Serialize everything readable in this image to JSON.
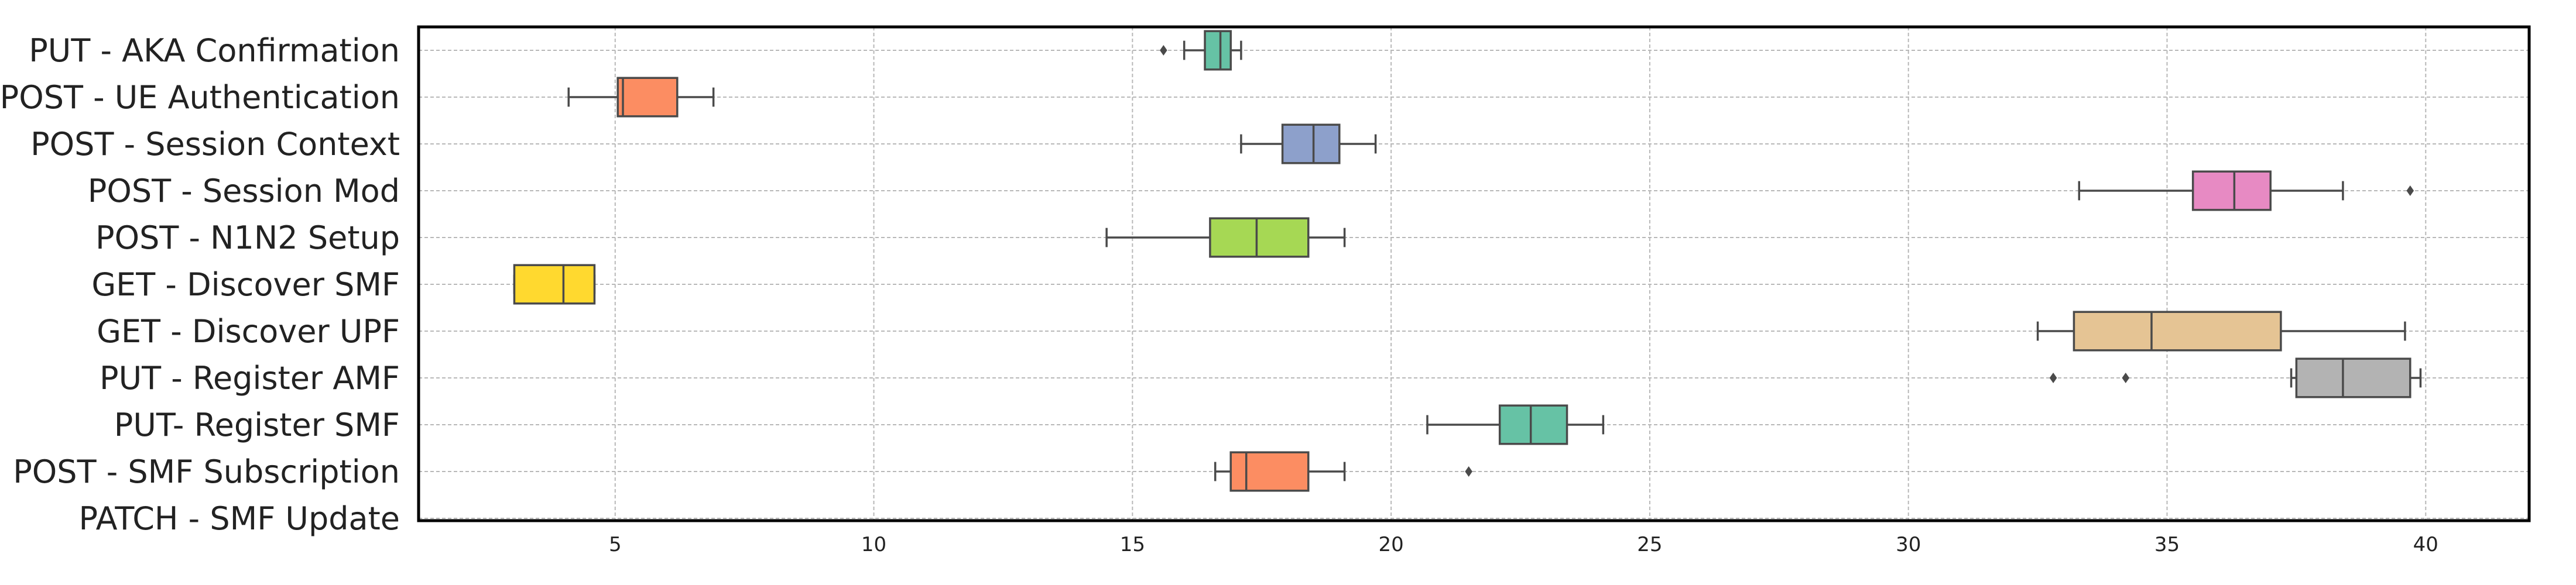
{
  "chart_data": {
    "type": "boxplot",
    "orientation": "horizontal",
    "title": "",
    "xlabel": "",
    "ylabel": "",
    "xlim": [
      1.2,
      42
    ],
    "xticks": [
      5,
      10,
      15,
      20,
      25,
      30,
      35,
      40
    ],
    "xtick_labels": [
      "5",
      "10",
      "15",
      "20",
      "25",
      "30",
      "35",
      "40"
    ],
    "grid": true,
    "categories": [
      "PUT - AKA Confirmation",
      "POST - UE Authentication",
      "POST - Session Context",
      "POST - Session Mod",
      "POST - N1N2 Setup",
      "GET - Discover SMF",
      "GET - Discover UPF",
      "PUT - Register AMF",
      "PUT- Register SMF",
      "POST - SMF Subscription",
      "PATCH - SMF Update"
    ],
    "boxes": [
      {
        "whisker_low": 16.0,
        "q1": 16.4,
        "median": 16.7,
        "q3": 16.9,
        "whisker_high": 17.1,
        "fliers": [
          15.6
        ],
        "color": "#66c2a5"
      },
      {
        "whisker_low": 4.1,
        "q1": 5.05,
        "median": 5.15,
        "q3": 6.2,
        "whisker_high": 6.9,
        "fliers": [],
        "color": "#fc8d62"
      },
      {
        "whisker_low": 17.1,
        "q1": 17.9,
        "median": 18.5,
        "q3": 19.0,
        "whisker_high": 19.7,
        "fliers": [],
        "color": "#8da0cb"
      },
      {
        "whisker_low": 33.3,
        "q1": 35.5,
        "median": 36.3,
        "q3": 37.0,
        "whisker_high": 38.4,
        "fliers": [
          39.7
        ],
        "color": "#e78ac3"
      },
      {
        "whisker_low": 14.5,
        "q1": 16.5,
        "median": 17.4,
        "q3": 18.4,
        "whisker_high": 19.1,
        "fliers": [],
        "color": "#a6d854"
      },
      {
        "whisker_low": 3.05,
        "q1": 3.05,
        "median": 4.0,
        "q3": 4.6,
        "whisker_high": 4.6,
        "fliers": [],
        "color": "#ffd92f"
      },
      {
        "whisker_low": 32.5,
        "q1": 33.2,
        "median": 34.7,
        "q3": 37.2,
        "whisker_high": 39.6,
        "fliers": [],
        "color": "#e5c494"
      },
      {
        "whisker_low": 37.4,
        "q1": 37.5,
        "median": 38.4,
        "q3": 39.7,
        "whisker_high": 39.9,
        "fliers": [
          32.8,
          34.2
        ],
        "color": "#b3b3b3"
      },
      {
        "whisker_low": 20.7,
        "q1": 22.1,
        "median": 22.7,
        "q3": 23.4,
        "whisker_high": 24.1,
        "fliers": [],
        "color": "#66c2a5"
      },
      {
        "whisker_low": 16.6,
        "q1": 16.9,
        "median": 17.2,
        "q3": 18.4,
        "whisker_high": 19.1,
        "fliers": [
          21.5
        ],
        "color": "#fc8d62"
      },
      null
    ]
  }
}
